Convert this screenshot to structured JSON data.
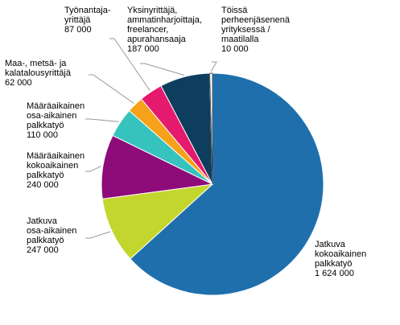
{
  "chart_data": {
    "type": "pie",
    "slices": [
      {
        "label_lines": [
          "Jatkuva",
          "kokoaikainen",
          "palkkatyö",
          "1 624 000"
        ],
        "value": 1624000,
        "color": "#1f6fad"
      },
      {
        "label_lines": [
          "Jatkuva",
          "osa-aikainen",
          "palkkatyö",
          "247 000"
        ],
        "value": 247000,
        "color": "#c3d62e"
      },
      {
        "label_lines": [
          "Määräaikainen",
          "kokoaikainen",
          "palkkatyö",
          "240 000"
        ],
        "value": 240000,
        "color": "#8e0b7a"
      },
      {
        "label_lines": [
          "Määräaikainen",
          "osa-aikainen",
          "palkkatyö",
          "110 000"
        ],
        "value": 110000,
        "color": "#36c3bd"
      },
      {
        "label_lines": [
          "Maa-, metsä- ja",
          "kalatalousyrittäjä",
          "62 000"
        ],
        "value": 62000,
        "color": "#f7a11a"
      },
      {
        "label_lines": [
          "Työnantaja-",
          "yrittäjä",
          "87 000"
        ],
        "value": 87000,
        "color": "#e5196e"
      },
      {
        "label_lines": [
          "Yksinyrittäjä,",
          "ammatinharjoittaja,",
          "freelancer,",
          "apurahansaaja",
          "187 000"
        ],
        "value": 187000,
        "color": "#0d3e5e"
      },
      {
        "label_lines": [
          "Töissä",
          "perheenjäsenenä",
          "yrityksessä /",
          "maatilalla",
          "10 000"
        ],
        "value": 10000,
        "color": "#ffffff"
      }
    ]
  }
}
